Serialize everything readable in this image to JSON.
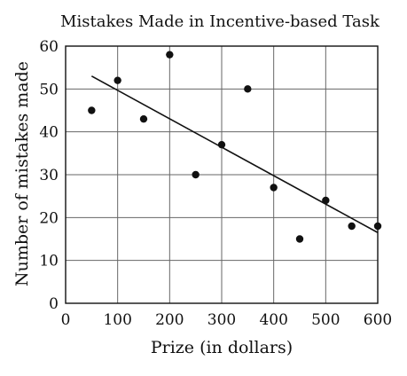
{
  "chart_data": {
    "type": "scatter",
    "title": "Mistakes Made in Incentive-based Task",
    "xlabel": "Prize (in dollars)",
    "ylabel": "Number of mistakes made",
    "xlim": [
      0,
      600
    ],
    "ylim": [
      0,
      60
    ],
    "x_ticks": [
      0,
      100,
      200,
      300,
      400,
      500,
      600
    ],
    "y_ticks": [
      0,
      10,
      20,
      30,
      40,
      50,
      60
    ],
    "grid": true,
    "points": [
      {
        "x": 50,
        "y": 45
      },
      {
        "x": 100,
        "y": 52
      },
      {
        "x": 150,
        "y": 43
      },
      {
        "x": 200,
        "y": 58
      },
      {
        "x": 250,
        "y": 30
      },
      {
        "x": 300,
        "y": 37
      },
      {
        "x": 350,
        "y": 50
      },
      {
        "x": 400,
        "y": 27
      },
      {
        "x": 450,
        "y": 15
      },
      {
        "x": 500,
        "y": 24
      },
      {
        "x": 550,
        "y": 18
      },
      {
        "x": 600,
        "y": 18
      }
    ],
    "trend_line": {
      "x1": 50,
      "y1": 53,
      "x2": 600,
      "y2": 16.5
    }
  }
}
